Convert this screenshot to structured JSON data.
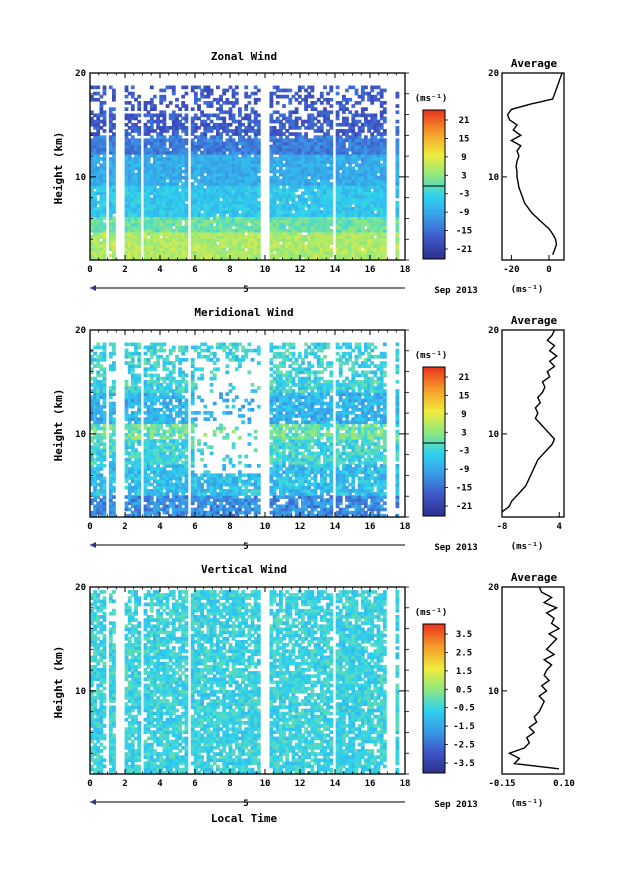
{
  "chart_data": [
    {
      "type": "heatmap",
      "title": "Zonal Wind",
      "ylabel": "Height (km)",
      "xlabel": "",
      "ylim": [
        2,
        20
      ],
      "xlim": [
        0,
        18
      ],
      "x_ticks": [
        "0",
        "2",
        "4",
        "6",
        "8",
        "10",
        "12",
        "14",
        "16",
        "18"
      ],
      "y_ticks": [
        "10",
        "20"
      ],
      "date_label": "Sep 2013",
      "day_label": "5",
      "colorbar": {
        "unit": "(ms⁻¹)",
        "labels": [
          "21",
          "15",
          "9",
          "3",
          "-3",
          "-9",
          "-15",
          "-21"
        ],
        "range": [
          -24,
          24
        ],
        "zero_line": true
      },
      "data_gaps_hours": [
        [
          0.9,
          1.0
        ],
        [
          1.5,
          1.9
        ],
        [
          2.8,
          3.0
        ],
        [
          5.5,
          5.8
        ],
        [
          9.8,
          10.2
        ],
        [
          13.8,
          14.1
        ],
        [
          17.0,
          17.5
        ]
      ],
      "profile": {
        "title": "Average",
        "xlabel": "(ms⁻¹)",
        "x_ticks": [
          "-20",
          "0"
        ],
        "y_ticks": [
          "10",
          "20"
        ],
        "xlim": [
          -25,
          8
        ],
        "heights_km": [
          2.5,
          3,
          3.5,
          4,
          4.5,
          5,
          5.5,
          6,
          6.5,
          7,
          7.5,
          8,
          8.5,
          9,
          9.5,
          10,
          10.5,
          11,
          11.5,
          12,
          12.5,
          13,
          13.5,
          14,
          14.5,
          15,
          15.5,
          16,
          16.5,
          17,
          17.5,
          18,
          18.5,
          19,
          19.5,
          20
        ],
        "values": [
          2,
          3,
          4,
          3.5,
          2,
          0,
          -3,
          -6,
          -9,
          -11,
          -13,
          -14,
          -15,
          -16,
          -16.5,
          -17,
          -17,
          -17.5,
          -17,
          -16,
          -17,
          -15,
          -20,
          -15,
          -19,
          -17,
          -21,
          -22,
          -20,
          -10,
          2,
          3,
          4,
          5,
          6,
          7
        ]
      }
    },
    {
      "type": "heatmap",
      "title": "Meridional Wind",
      "ylabel": "Height (km)",
      "xlabel": "",
      "ylim": [
        2,
        20
      ],
      "xlim": [
        0,
        18
      ],
      "x_ticks": [
        "0",
        "2",
        "4",
        "6",
        "8",
        "10",
        "12",
        "14",
        "16",
        "18"
      ],
      "y_ticks": [
        "10",
        "20"
      ],
      "date_label": "Sep 2013",
      "day_label": "5",
      "colorbar": {
        "unit": "(ms⁻¹)",
        "labels": [
          "21",
          "15",
          "9",
          "3",
          "-3",
          "-9",
          "-15",
          "-21"
        ],
        "range": [
          -24,
          24
        ],
        "zero_line": true
      },
      "data_gaps_hours": [
        [
          0.9,
          1.0
        ],
        [
          1.5,
          1.9
        ],
        [
          2.8,
          3.0
        ],
        [
          5.5,
          5.8
        ],
        [
          9.8,
          10.2
        ],
        [
          13.8,
          14.1
        ],
        [
          17.0,
          17.5
        ]
      ],
      "profile": {
        "title": "Average",
        "xlabel": "(ms⁻¹)",
        "x_ticks": [
          "-8",
          "4"
        ],
        "y_ticks": [
          "10",
          "20"
        ],
        "xlim": [
          -8,
          5
        ],
        "heights_km": [
          2.5,
          3,
          3.5,
          4,
          4.5,
          5,
          5.5,
          6,
          6.5,
          7,
          7.5,
          8,
          8.5,
          9,
          9.5,
          10,
          10.5,
          11,
          11.5,
          12,
          12.5,
          13,
          13.5,
          14,
          14.5,
          15,
          15.5,
          16,
          16.5,
          17,
          17.5,
          18,
          18.5,
          19,
          19.5,
          20
        ],
        "values": [
          -8,
          -6.5,
          -6,
          -5,
          -4,
          -3,
          -2.5,
          -2,
          -1.5,
          -1,
          -0.5,
          0.5,
          1.5,
          2.5,
          3,
          2,
          1,
          0,
          -1,
          -0.5,
          -1,
          0,
          -0.5,
          0.5,
          1,
          0.5,
          2,
          1.5,
          3,
          2,
          3.5,
          2,
          3,
          1.5,
          2.5,
          3
        ]
      }
    },
    {
      "type": "heatmap",
      "title": "Vertical Wind",
      "ylabel": "Height (km)",
      "xlabel": "Local Time",
      "ylim": [
        2,
        20
      ],
      "xlim": [
        0,
        18
      ],
      "x_ticks": [
        "0",
        "2",
        "4",
        "6",
        "8",
        "10",
        "12",
        "14",
        "16",
        "18"
      ],
      "y_ticks": [
        "10",
        "20"
      ],
      "date_label": "Sep 2013",
      "day_label": "5",
      "colorbar": {
        "unit": "(ms⁻¹)",
        "labels": [
          "3.5",
          "2.5",
          "1.5",
          "0.5",
          "-0.5",
          "-1.5",
          "-2.5",
          "-3.5"
        ],
        "range": [
          -4,
          4
        ],
        "zero_line": false
      },
      "data_gaps_hours": [
        [
          0.9,
          1.0
        ],
        [
          1.5,
          1.9
        ],
        [
          2.8,
          3.0
        ],
        [
          5.5,
          5.8
        ],
        [
          9.8,
          10.2
        ],
        [
          13.8,
          14.1
        ],
        [
          17.0,
          17.5
        ]
      ],
      "profile": {
        "title": "Average",
        "xlabel": "(ms⁻¹)",
        "x_ticks": [
          "-0.15",
          "0.10"
        ],
        "y_ticks": [
          "10",
          "20"
        ],
        "xlim": [
          -0.15,
          0.1
        ],
        "heights_km": [
          2.5,
          3,
          3.5,
          4,
          4.5,
          5,
          5.5,
          6,
          6.5,
          7,
          7.5,
          8,
          8.5,
          9,
          9.5,
          10,
          10.5,
          11,
          11.5,
          12,
          12.5,
          13,
          13.5,
          14,
          14.5,
          15,
          15.5,
          16,
          16.5,
          17,
          17.5,
          18,
          18.5,
          19,
          19.5,
          20
        ],
        "values": [
          0.08,
          -0.1,
          -0.08,
          -0.12,
          -0.06,
          -0.04,
          -0.05,
          -0.02,
          -0.04,
          -0.01,
          -0.02,
          0.0,
          0.01,
          0.02,
          0.0,
          0.03,
          0.01,
          0.04,
          0.02,
          0.03,
          0.05,
          0.02,
          0.06,
          0.03,
          0.05,
          0.07,
          0.04,
          0.08,
          0.05,
          0.06,
          0.03,
          0.07,
          0.02,
          0.05,
          0.01,
          0.0
        ]
      }
    }
  ]
}
